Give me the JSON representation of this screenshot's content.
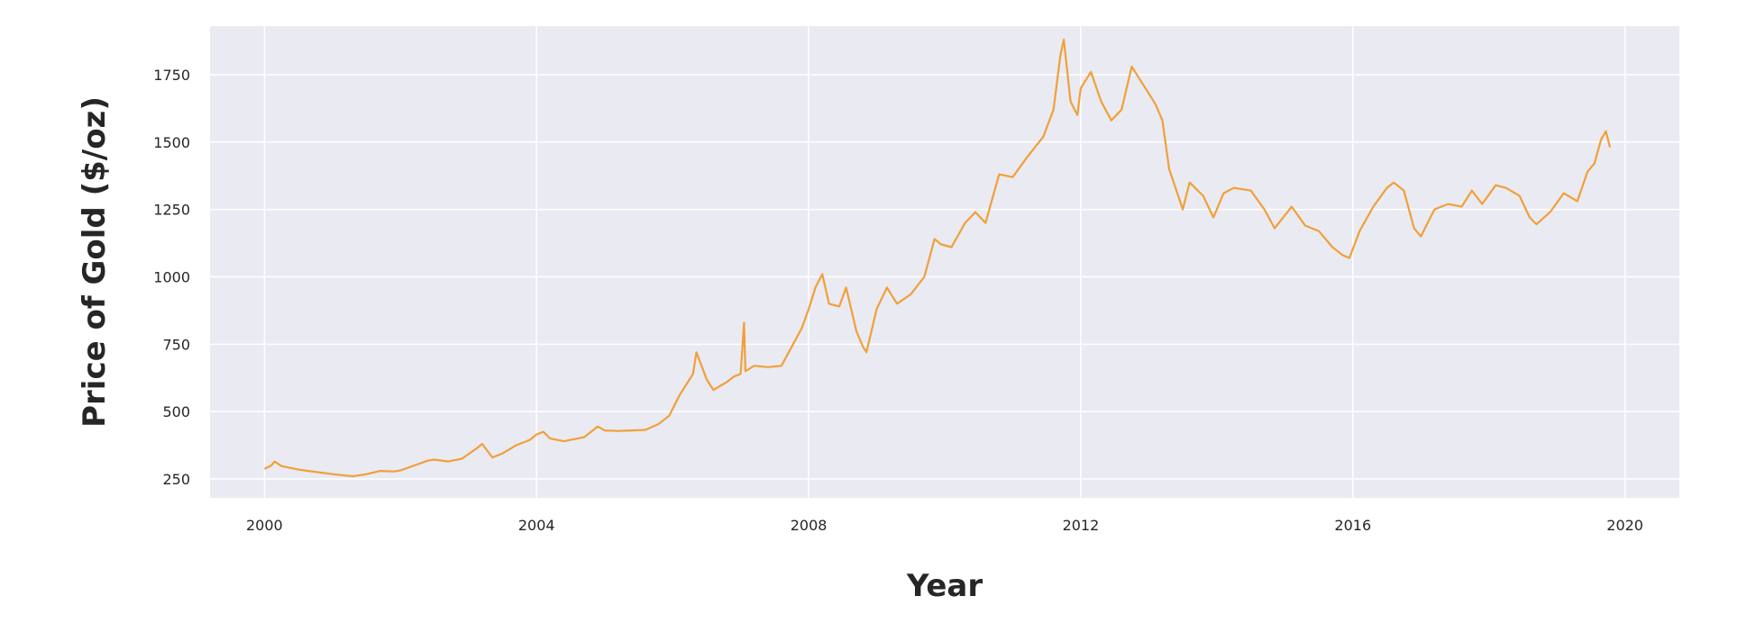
{
  "chart_data": {
    "type": "line",
    "title": "",
    "xlabel": "Year",
    "ylabel": "Price of Gold ($/oz)",
    "xlim": [
      1999.2,
      2020.8
    ],
    "ylim": [
      180,
      1930
    ],
    "x_ticks": [
      2000,
      2004,
      2008,
      2012,
      2016,
      2020
    ],
    "y_ticks": [
      250,
      500,
      750,
      1000,
      1250,
      1500,
      1750
    ],
    "grid": true,
    "colors": {
      "line": "#f0a038",
      "plot_background": "#eaeaf2",
      "grid": "#ffffff",
      "text": "#262626"
    },
    "series": [
      {
        "values": [
          [
            2000.0,
            288
          ],
          [
            2000.1,
            300
          ],
          [
            2000.15,
            315
          ],
          [
            2000.25,
            298
          ],
          [
            2000.5,
            285
          ],
          [
            2000.8,
            275
          ],
          [
            2001.0,
            268
          ],
          [
            2001.3,
            260
          ],
          [
            2001.5,
            268
          ],
          [
            2001.7,
            280
          ],
          [
            2001.9,
            278
          ],
          [
            2002.0,
            282
          ],
          [
            2002.2,
            300
          ],
          [
            2002.4,
            318
          ],
          [
            2002.5,
            322
          ],
          [
            2002.7,
            315
          ],
          [
            2002.9,
            325
          ],
          [
            2003.1,
            360
          ],
          [
            2003.2,
            380
          ],
          [
            2003.35,
            330
          ],
          [
            2003.5,
            345
          ],
          [
            2003.7,
            375
          ],
          [
            2003.9,
            395
          ],
          [
            2004.0,
            415
          ],
          [
            2004.1,
            425
          ],
          [
            2004.2,
            400
          ],
          [
            2004.4,
            390
          ],
          [
            2004.5,
            395
          ],
          [
            2004.7,
            405
          ],
          [
            2004.9,
            445
          ],
          [
            2005.0,
            430
          ],
          [
            2005.2,
            428
          ],
          [
            2005.4,
            430
          ],
          [
            2005.6,
            432
          ],
          [
            2005.8,
            455
          ],
          [
            2005.95,
            485
          ],
          [
            2006.1,
            560
          ],
          [
            2006.3,
            640
          ],
          [
            2006.35,
            720
          ],
          [
            2006.5,
            620
          ],
          [
            2006.6,
            580
          ],
          [
            2006.8,
            610
          ],
          [
            2006.9,
            630
          ],
          [
            2007.0,
            640
          ],
          [
            2007.05,
            830
          ],
          [
            2007.07,
            650
          ],
          [
            2007.2,
            670
          ],
          [
            2007.4,
            665
          ],
          [
            2007.6,
            670
          ],
          [
            2007.75,
            740
          ],
          [
            2007.9,
            810
          ],
          [
            2008.0,
            880
          ],
          [
            2008.1,
            960
          ],
          [
            2008.2,
            1010
          ],
          [
            2008.3,
            900
          ],
          [
            2008.45,
            890
          ],
          [
            2008.55,
            960
          ],
          [
            2008.7,
            800
          ],
          [
            2008.8,
            740
          ],
          [
            2008.85,
            720
          ],
          [
            2009.0,
            880
          ],
          [
            2009.15,
            960
          ],
          [
            2009.3,
            900
          ],
          [
            2009.5,
            935
          ],
          [
            2009.7,
            1000
          ],
          [
            2009.85,
            1140
          ],
          [
            2009.95,
            1120
          ],
          [
            2010.1,
            1110
          ],
          [
            2010.3,
            1200
          ],
          [
            2010.45,
            1240
          ],
          [
            2010.6,
            1200
          ],
          [
            2010.8,
            1380
          ],
          [
            2011.0,
            1370
          ],
          [
            2011.2,
            1440
          ],
          [
            2011.45,
            1520
          ],
          [
            2011.6,
            1620
          ],
          [
            2011.7,
            1820
          ],
          [
            2011.75,
            1880
          ],
          [
            2011.85,
            1650
          ],
          [
            2011.95,
            1600
          ],
          [
            2012.0,
            1700
          ],
          [
            2012.15,
            1760
          ],
          [
            2012.3,
            1650
          ],
          [
            2012.45,
            1580
          ],
          [
            2012.6,
            1620
          ],
          [
            2012.75,
            1780
          ],
          [
            2012.9,
            1720
          ],
          [
            2013.1,
            1640
          ],
          [
            2013.2,
            1580
          ],
          [
            2013.3,
            1400
          ],
          [
            2013.5,
            1250
          ],
          [
            2013.6,
            1350
          ],
          [
            2013.8,
            1300
          ],
          [
            2013.95,
            1220
          ],
          [
            2014.1,
            1310
          ],
          [
            2014.25,
            1330
          ],
          [
            2014.5,
            1320
          ],
          [
            2014.7,
            1250
          ],
          [
            2014.85,
            1180
          ],
          [
            2015.1,
            1260
          ],
          [
            2015.3,
            1190
          ],
          [
            2015.5,
            1170
          ],
          [
            2015.7,
            1110
          ],
          [
            2015.85,
            1080
          ],
          [
            2015.95,
            1070
          ],
          [
            2016.1,
            1170
          ],
          [
            2016.3,
            1260
          ],
          [
            2016.5,
            1330
          ],
          [
            2016.6,
            1350
          ],
          [
            2016.75,
            1320
          ],
          [
            2016.9,
            1180
          ],
          [
            2017.0,
            1150
          ],
          [
            2017.2,
            1250
          ],
          [
            2017.4,
            1270
          ],
          [
            2017.6,
            1260
          ],
          [
            2017.75,
            1320
          ],
          [
            2017.9,
            1270
          ],
          [
            2018.1,
            1340
          ],
          [
            2018.25,
            1330
          ],
          [
            2018.45,
            1300
          ],
          [
            2018.6,
            1220
          ],
          [
            2018.7,
            1195
          ],
          [
            2018.9,
            1240
          ],
          [
            2019.1,
            1310
          ],
          [
            2019.3,
            1280
          ],
          [
            2019.45,
            1390
          ],
          [
            2019.55,
            1420
          ],
          [
            2019.65,
            1510
          ],
          [
            2019.72,
            1540
          ],
          [
            2019.78,
            1480
          ]
        ]
      }
    ]
  }
}
